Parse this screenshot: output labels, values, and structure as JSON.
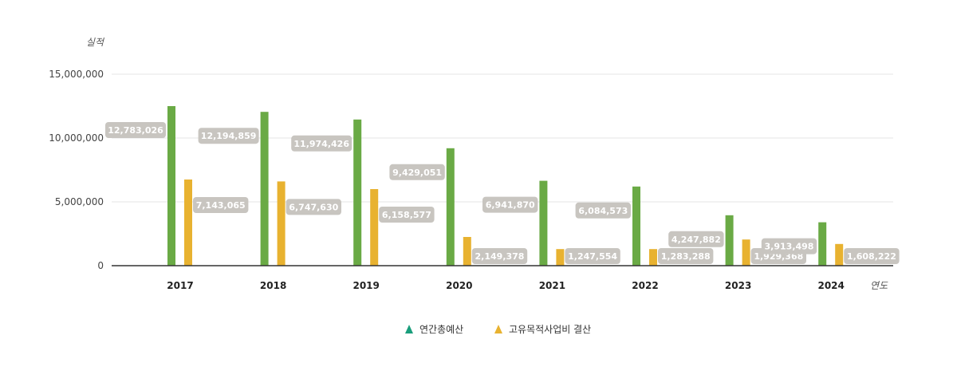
{
  "chart_data": {
    "type": "bar",
    "ylabel": "실적",
    "xlabel": "연도",
    "ylim": [
      0,
      15000000
    ],
    "yticks": [
      "0",
      "5,000,000",
      "10,000,000",
      "15,000,000"
    ],
    "ytick_values": [
      0,
      5000000,
      10000000,
      15000000
    ],
    "categories": [
      "2017",
      "2018",
      "2019",
      "2020",
      "2021",
      "2022",
      "2023",
      "2024"
    ],
    "grid": true,
    "legend_position": "bottom-center",
    "series": [
      {
        "name": "연간총예산",
        "color": "#6aaa45",
        "legend_color": "#1a9e7c",
        "values": [
          12783026,
          12194859,
          11974426,
          9429051,
          6941870,
          6084573,
          4247882,
          3913498
        ],
        "labels": [
          "12,783,026",
          "12,194,859",
          "11,974,426",
          "9,429,051",
          "6,941,870",
          "6,084,573",
          "4,247,882",
          "3,913,498"
        ],
        "display_values": [
          12500000,
          12050000,
          11450000,
          9200000,
          6650000,
          6200000,
          3950000,
          3400000
        ]
      },
      {
        "name": "고유목적사업비 결산",
        "color": "#e8b230",
        "legend_color": "#e8b230",
        "values": [
          7143065,
          6747630,
          6158577,
          2149378,
          1247554,
          1283288,
          1929368,
          1608222
        ],
        "labels": [
          "7,143,065",
          "6,747,630",
          "6,158,577",
          "2,149,378",
          "1,247,554",
          "1,283,288",
          "1,929,368",
          "1,608,222"
        ],
        "display_values": [
          6750000,
          6600000,
          6000000,
          2250000,
          1300000,
          1300000,
          2050000,
          1700000
        ]
      }
    ],
    "label_box_color": "#c8c5c0"
  }
}
